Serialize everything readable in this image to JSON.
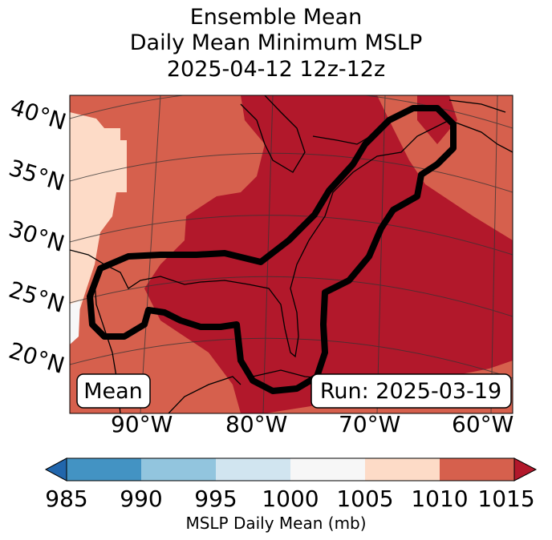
{
  "title": {
    "line1": "Ensemble Mean",
    "line2": "Daily Mean Minimum MSLP",
    "line3": "2025-04-12 12z-12z"
  },
  "map": {
    "region": "Eastern United States, Gulf of Mexico and western Atlantic",
    "lat_labels": [
      "40°N",
      "35°N",
      "30°N",
      "25°N",
      "20°N"
    ],
    "lon_labels": [
      "90°W",
      "80°W",
      "70°W",
      "60°W"
    ],
    "mean_box": "Mean",
    "run_box": "Run: 2025-03-19",
    "contour_color": "#000000"
  },
  "colorbar": {
    "label": "MSLP Daily Mean (mb)",
    "ticks": [
      "985",
      "990",
      "995",
      "1000",
      "1005",
      "1010",
      "1015"
    ],
    "colors": [
      "#2166ac",
      "#4393c3",
      "#92c5de",
      "#d1e5f0",
      "#f7f7f7",
      "#fddbc7",
      "#d6604d",
      "#b2182b"
    ]
  }
}
